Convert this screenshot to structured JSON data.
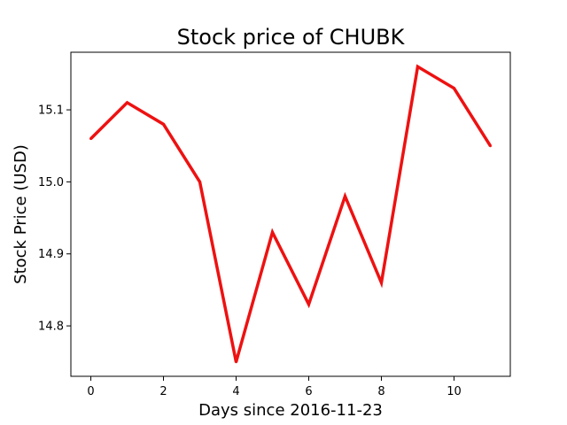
{
  "chart_data": {
    "type": "line",
    "title": "Stock price of CHUBK",
    "xlabel": "Days since 2016-11-23",
    "ylabel": "Stock Price (USD)",
    "x": [
      0,
      1,
      2,
      3,
      4,
      5,
      6,
      7,
      8,
      9,
      10,
      11
    ],
    "series": [
      {
        "values": [
          15.06,
          15.11,
          15.08,
          15.0,
          14.75,
          14.93,
          14.83,
          14.98,
          14.86,
          15.16,
          15.13,
          15.05
        ],
        "color": "#ee1111"
      }
    ],
    "xlim": [
      -0.55,
      11.55
    ],
    "ylim": [
      14.73,
      15.18
    ],
    "xticks": [
      0,
      2,
      4,
      6,
      8,
      10
    ],
    "xtick_labels": [
      "0",
      "2",
      "4",
      "6",
      "8",
      "10"
    ],
    "yticks": [
      14.8,
      14.9,
      15.0,
      15.1
    ],
    "ytick_labels": [
      "14.8",
      "14.9",
      "15.0",
      "15.1"
    ],
    "grid": false,
    "legend": "none"
  }
}
